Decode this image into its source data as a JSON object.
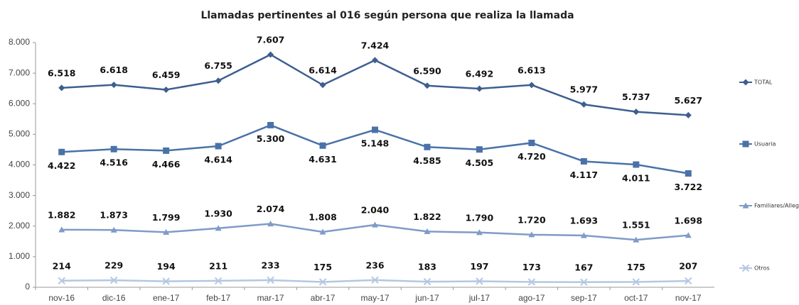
{
  "chart_data": {
    "type": "line",
    "title": "Llamadas pertinentes al 016 según persona que realiza la llamada",
    "categories": [
      "nov-16",
      "dic-16",
      "ene-17",
      "feb-17",
      "mar-17",
      "abr-17",
      "may-17",
      "jun-17",
      "jul-17",
      "ago-17",
      "sep-17",
      "oct-17",
      "nov-17"
    ],
    "series": [
      {
        "name": "TOTAL",
        "color": "#3d5f8f",
        "marker": "diamond",
        "label_position": "above",
        "values": [
          6518,
          6618,
          6459,
          6755,
          7607,
          6614,
          7424,
          6590,
          6492,
          6613,
          5977,
          5737,
          5627
        ],
        "value_labels": [
          "6.518",
          "6.618",
          "6.459",
          "6.755",
          "7.607",
          "6.614",
          "7.424",
          "6.590",
          "6.492",
          "6.613",
          "5.977",
          "5.737",
          "5.627"
        ]
      },
      {
        "name": "Usuaria",
        "color": "#4a72a8",
        "marker": "square",
        "label_position": "below",
        "values": [
          4422,
          4516,
          4466,
          4614,
          5300,
          4631,
          5148,
          4585,
          4505,
          4720,
          4117,
          4011,
          3722
        ],
        "value_labels": [
          "4.422",
          "4.516",
          "4.466",
          "4.614",
          "5.300",
          "4.631",
          "5.148",
          "4.585",
          "4.505",
          "4.720",
          "4.117",
          "4.011",
          "3.722"
        ]
      },
      {
        "name": "Familiares/Allegados",
        "color": "#7f9bc8",
        "marker": "triangle",
        "label_position": "above",
        "values": [
          1882,
          1873,
          1799,
          1930,
          2074,
          1808,
          2040,
          1822,
          1790,
          1720,
          1693,
          1551,
          1698
        ],
        "value_labels": [
          "1.882",
          "1.873",
          "1.799",
          "1.930",
          "2.074",
          "1.808",
          "2.040",
          "1.822",
          "1.790",
          "1.720",
          "1.693",
          "1.551",
          "1.698"
        ]
      },
      {
        "name": "Otros",
        "color": "#b4c7e3",
        "marker": "x",
        "label_position": "above",
        "values": [
          214,
          229,
          194,
          211,
          233,
          175,
          236,
          183,
          197,
          173,
          167,
          175,
          207
        ]
      }
    ],
    "ylim": [
      0,
      8000
    ],
    "yticks": [
      0,
      {
        "value": 1000,
        "label": "1.000"
      },
      {
        "value": 2000,
        "label": "2.000"
      },
      {
        "value": 3000,
        "label": "3.000"
      },
      {
        "value": 4000,
        "label": "4.000"
      },
      {
        "value": 5000,
        "label": "5.000"
      },
      {
        "value": 6000,
        "label": "6.000"
      },
      {
        "value": 7000,
        "label": "7.000"
      },
      {
        "value": 8000,
        "label": "8.000"
      }
    ],
    "grid": false,
    "legend": "right"
  }
}
